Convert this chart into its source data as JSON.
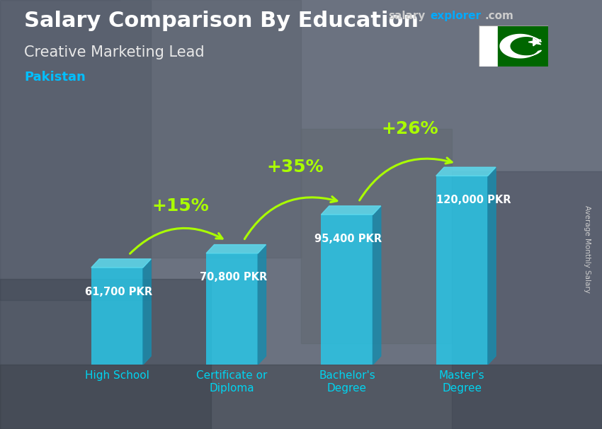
{
  "title": "Salary Comparison By Education",
  "subtitle": "Creative Marketing Lead",
  "country": "Pakistan",
  "ylabel": "Average Monthly Salary",
  "categories": [
    "High School",
    "Certificate or\nDiploma",
    "Bachelor's\nDegree",
    "Master's\nDegree"
  ],
  "values": [
    61700,
    70800,
    95400,
    120000
  ],
  "value_labels": [
    "61,700 PKR",
    "70,800 PKR",
    "95,400 PKR",
    "120,000 PKR"
  ],
  "pct_labels": [
    "+15%",
    "+35%",
    "+26%"
  ],
  "bar_front_color": "#29c5e6",
  "bar_side_color": "#1a8aab",
  "bar_top_color": "#5ddcf0",
  "bg_color": "#5a6370",
  "title_color": "#ffffff",
  "subtitle_color": "#e8e8e8",
  "country_color": "#00bfff",
  "value_label_color": "#ffffff",
  "pct_color": "#aaff00",
  "arrow_color": "#aaff00",
  "xticklabel_color": "#00d4f0",
  "ylabel_color": "#cccccc",
  "site_salary_color": "#cccccc",
  "site_explorer_color": "#00aaff",
  "site_com_color": "#cccccc",
  "ylim": [
    0,
    150000
  ],
  "bar_alpha": 0.85
}
